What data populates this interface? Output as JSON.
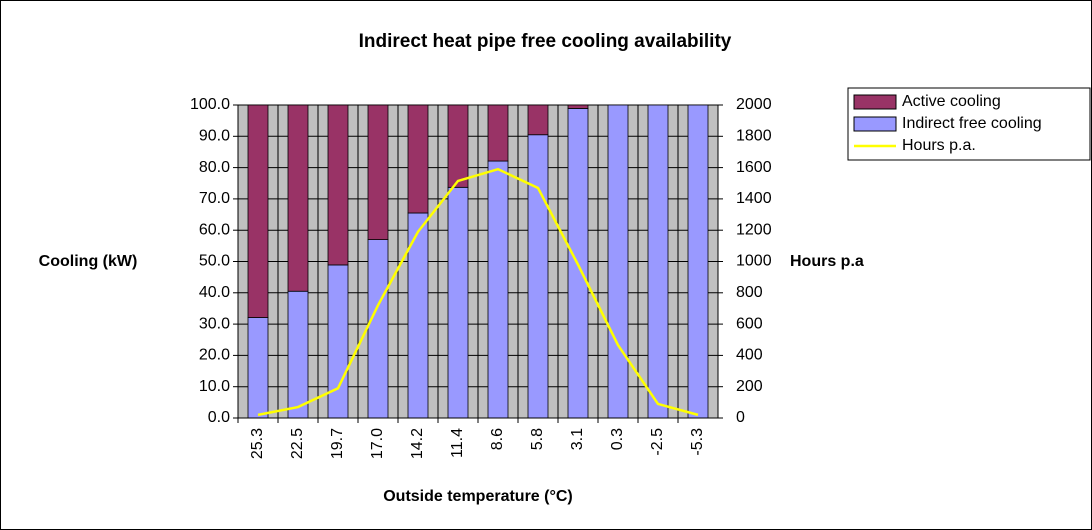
{
  "chart_data": {
    "type": "bar",
    "stacked": true,
    "grid": true,
    "title": "Indirect heat pipe free cooling availability",
    "x_label": "Outside temperature (°C)",
    "y_label": "Cooling (kW)",
    "y2_label": "Hours p.a",
    "legend": "right",
    "categories": [
      "25.3",
      "22.5",
      "19.7",
      "17.0",
      "14.2",
      "11.4",
      "8.6",
      "5.8",
      "3.1",
      "0.3",
      "-2.5",
      "-5.3"
    ],
    "series": [
      {
        "name": "Active cooling",
        "color": "#993366",
        "type": "bar",
        "values": [
          67.9,
          59.5,
          51.1,
          43.0,
          34.5,
          26.3,
          17.9,
          9.5,
          1.1,
          0,
          0,
          0
        ]
      },
      {
        "name": "Indirect free cooling",
        "color": "#9999ff",
        "type": "bar",
        "values": [
          32.1,
          40.5,
          48.9,
          57.0,
          65.5,
          73.7,
          82.1,
          90.5,
          98.9,
          100,
          100,
          100
        ]
      },
      {
        "name": "Hours p.a.",
        "color": "#ffff00",
        "type": "line",
        "axis": "y2",
        "values": [
          20,
          70,
          190,
          720,
          1190,
          1515,
          1590,
          1470,
          980,
          466,
          90,
          20
        ]
      }
    ],
    "ylim": [
      0,
      100
    ],
    "yticks": [
      {
        "value": 0,
        "label": "0.0"
      },
      {
        "value": 10,
        "label": "10.0"
      },
      {
        "value": 20,
        "label": "20.0"
      },
      {
        "value": 30,
        "label": "30.0"
      },
      {
        "value": 40,
        "label": "40.0"
      },
      {
        "value": 50,
        "label": "50.0"
      },
      {
        "value": 60,
        "label": "60.0"
      },
      {
        "value": 70,
        "label": "70.0"
      },
      {
        "value": 80,
        "label": "80.0"
      },
      {
        "value": 90,
        "label": "90.0"
      },
      {
        "value": 100,
        "label": "100.0"
      }
    ],
    "y2lim": [
      0,
      2000
    ],
    "y2ticks": [
      0,
      200,
      400,
      600,
      800,
      1000,
      1200,
      1400,
      1600,
      1800,
      2000
    ]
  }
}
